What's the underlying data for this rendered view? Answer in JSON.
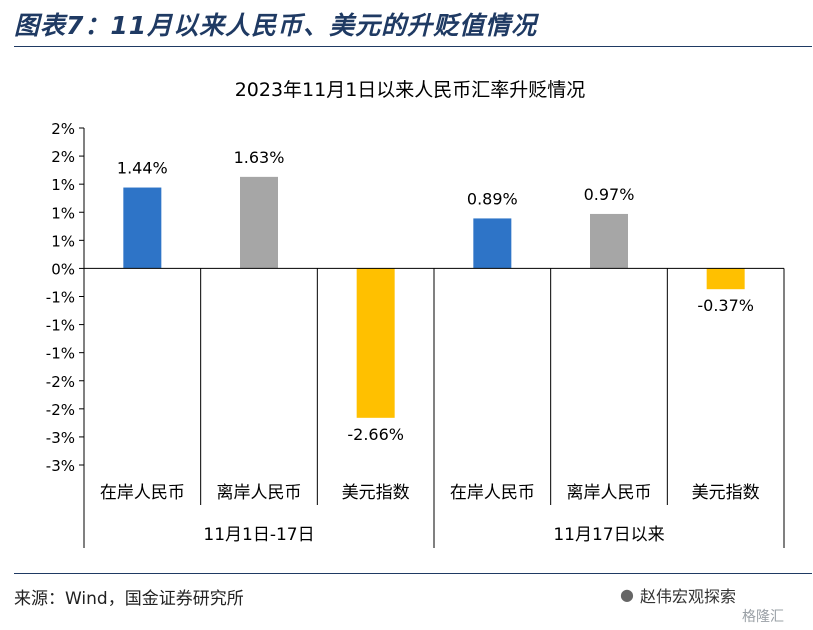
{
  "figure": {
    "title": "图表7：11月以来人民币、美元的升贬值情况",
    "source": "来源：Wind，国金证券研究所",
    "watermark": "赵伟宏观探索",
    "watermark2": "格隆汇",
    "watermark_icon": "wechat-icon"
  },
  "colors": {
    "blue": "#2e74c7",
    "gray": "#a6a6a6",
    "gold": "#ffc000",
    "title": "#1f3a63"
  },
  "chart_data": {
    "type": "bar",
    "title": "2023年11月1日以来人民币汇率升贬情况",
    "ylim": [
      -3.5,
      2.5
    ],
    "yticks": [
      {
        "value": 2.5,
        "label": "2%"
      },
      {
        "value": 2.0,
        "label": "2%"
      },
      {
        "value": 1.5,
        "label": "1%"
      },
      {
        "value": 1.0,
        "label": "1%"
      },
      {
        "value": 0.5,
        "label": "1%"
      },
      {
        "value": 0.0,
        "label": "0%"
      },
      {
        "value": -0.5,
        "label": "-1%"
      },
      {
        "value": -1.0,
        "label": "-1%"
      },
      {
        "value": -1.5,
        "label": "-1%"
      },
      {
        "value": -2.0,
        "label": "-2%"
      },
      {
        "value": -2.5,
        "label": "-2%"
      },
      {
        "value": -3.0,
        "label": "-3%"
      },
      {
        "value": -3.5,
        "label": "-3%"
      }
    ],
    "bars": [
      {
        "category": "在岸人民币",
        "value": 1.44,
        "label": "1.44%",
        "color": "#2e74c7"
      },
      {
        "category": "离岸人民币",
        "value": 1.63,
        "label": "1.63%",
        "color": "#a6a6a6"
      },
      {
        "category": "美元指数",
        "value": -2.66,
        "label": "-2.66%",
        "color": "#ffc000"
      },
      {
        "category": "在岸人民币",
        "value": 0.89,
        "label": "0.89%",
        "color": "#2e74c7"
      },
      {
        "category": "离岸人民币",
        "value": 0.97,
        "label": "0.97%",
        "color": "#a6a6a6"
      },
      {
        "category": "美元指数",
        "value": -0.37,
        "label": "-0.37%",
        "color": "#ffc000"
      }
    ],
    "groups": [
      {
        "label": "11月1日-17日",
        "span": [
          0,
          2
        ]
      },
      {
        "label": "11月17日以来",
        "span": [
          3,
          5
        ]
      }
    ],
    "grid": false,
    "legend": "none"
  }
}
